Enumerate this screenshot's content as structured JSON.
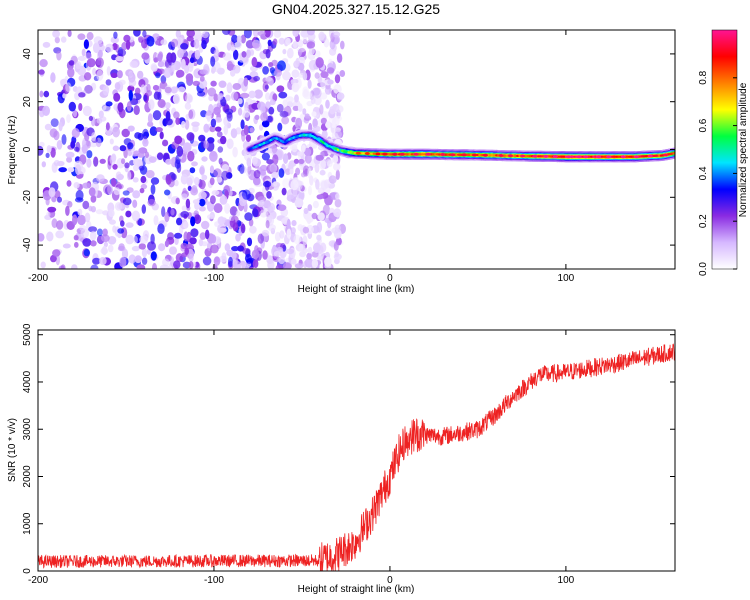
{
  "title": "GN04.2025.327.15.12.G25",
  "chart_data": [
    {
      "type": "heatmap",
      "xlabel": "Height of straight line (km)",
      "ylabel": "Frequency (Hz)",
      "xlim": [
        -200,
        162
      ],
      "ylim": [
        -50,
        50
      ],
      "x_ticks": [
        -200,
        -100,
        0,
        100
      ],
      "y_ticks": [
        -40,
        -20,
        0,
        20,
        40
      ],
      "colorbar": {
        "label": "Normalized spectral amplitude",
        "range": [
          0,
          1
        ],
        "ticks": [
          "0.0",
          "0.2",
          "0.4",
          "0.6",
          "0.8"
        ],
        "colors": [
          "#ffffff",
          "#d6b8ff",
          "#8a2be2",
          "#0000ff",
          "#00e5ff",
          "#00ff40",
          "#ffff00",
          "#ff8000",
          "#ff0000",
          "#ff1493"
        ]
      },
      "noise_region_x": [
        -200,
        -27
      ],
      "ridge": [
        {
          "x": -80,
          "y": 0,
          "amp": 0.35
        },
        {
          "x": -75,
          "y": 1.5,
          "amp": 0.4
        },
        {
          "x": -70,
          "y": 3,
          "amp": 0.45
        },
        {
          "x": -65,
          "y": 5,
          "amp": 0.4
        },
        {
          "x": -60,
          "y": 3,
          "amp": 0.4
        },
        {
          "x": -55,
          "y": 5,
          "amp": 0.45
        },
        {
          "x": -50,
          "y": 6,
          "amp": 0.45
        },
        {
          "x": -45,
          "y": 6,
          "amp": 0.5
        },
        {
          "x": -40,
          "y": 4,
          "amp": 0.5
        },
        {
          "x": -35,
          "y": 1.5,
          "amp": 0.5
        },
        {
          "x": -30,
          "y": 0,
          "amp": 0.55
        },
        {
          "x": -25,
          "y": -1,
          "amp": 0.6
        },
        {
          "x": -20,
          "y": -1.5,
          "amp": 0.7
        },
        {
          "x": 0,
          "y": -2,
          "amp": 0.8
        },
        {
          "x": 20,
          "y": -2,
          "amp": 0.85
        },
        {
          "x": 50,
          "y": -2.3,
          "amp": 0.8
        },
        {
          "x": 80,
          "y": -2.8,
          "amp": 0.85
        },
        {
          "x": 100,
          "y": -3,
          "amp": 0.95
        },
        {
          "x": 140,
          "y": -3,
          "amp": 0.9
        },
        {
          "x": 155,
          "y": -2.5,
          "amp": 0.85
        },
        {
          "x": 162,
          "y": -1.5,
          "amp": 0.8
        }
      ]
    },
    {
      "type": "line",
      "xlabel": "Height of straight line (km)",
      "ylabel": "SNR (10 * v/v)",
      "xlim": [
        -200,
        162
      ],
      "ylim": [
        0,
        5100
      ],
      "x_ticks": [
        -200,
        -100,
        0,
        100
      ],
      "y_ticks": [
        0,
        1000,
        2000,
        3000,
        4000,
        5000
      ],
      "series": [
        {
          "color": "#ee2222",
          "trend_x": [
            -200,
            -40,
            -30,
            -20,
            -10,
            0,
            5,
            10,
            15,
            30,
            50,
            60,
            70,
            80,
            85,
            100,
            130,
            162
          ],
          "trend_y": [
            200,
            220,
            350,
            600,
            1200,
            2000,
            2500,
            2800,
            2900,
            2850,
            3000,
            3300,
            3700,
            4000,
            4150,
            4200,
            4400,
            4650
          ],
          "noise_amplitude": 150
        }
      ]
    }
  ]
}
